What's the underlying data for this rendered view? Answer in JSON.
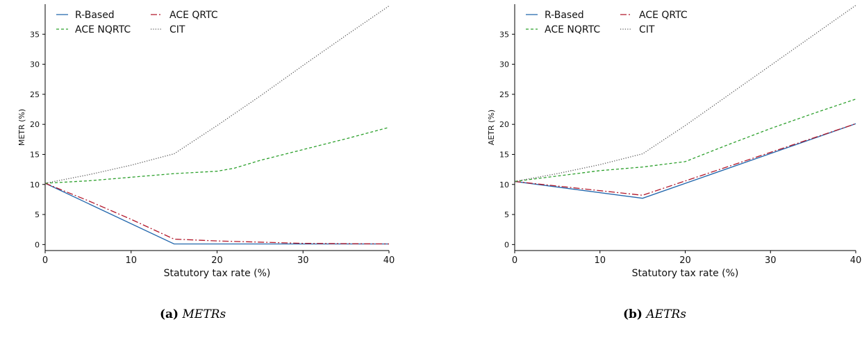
{
  "figure": {
    "captions": [
      {
        "label": "(a)",
        "text": "METRs"
      },
      {
        "label": "(b)",
        "text": "AETRs"
      }
    ]
  },
  "chart_data": [
    {
      "type": "line",
      "xlabel": "Statutory tax rate (%)",
      "ylabel": "METR (%)",
      "xlim": [
        0,
        40
      ],
      "ylim": [
        -1,
        40
      ],
      "xticks": [
        0,
        10,
        20,
        30,
        40
      ],
      "yticks": [
        0,
        5,
        10,
        15,
        20,
        25,
        30,
        35
      ],
      "grid": false,
      "legend": "top-left",
      "series": [
        {
          "name": "R-Based",
          "color": "#2166ac",
          "dash": "solid",
          "points": [
            [
              0,
              10.2
            ],
            [
              15,
              0.1
            ],
            [
              40,
              0.1
            ]
          ]
        },
        {
          "name": "ACE QRTC",
          "color": "#b2182b",
          "dash": "dashdot",
          "points": [
            [
              0,
              10.2
            ],
            [
              5,
              7.3
            ],
            [
              10,
              4.2
            ],
            [
              15,
              0.9
            ],
            [
              20,
              0.6
            ],
            [
              30,
              0.2
            ],
            [
              40,
              0.1
            ]
          ]
        },
        {
          "name": "ACE NQRTC",
          "color": "#2ca02c",
          "dash": "dashed",
          "points": [
            [
              0,
              10.2
            ],
            [
              5,
              10.6
            ],
            [
              10,
              11.2
            ],
            [
              15,
              11.8
            ],
            [
              20,
              12.2
            ],
            [
              22,
              12.7
            ],
            [
              25,
              14
            ],
            [
              30,
              15.8
            ],
            [
              35,
              17.6
            ],
            [
              40,
              19.5
            ]
          ]
        },
        {
          "name": "CIT",
          "color": "#555555",
          "dash": "dotted",
          "points": [
            [
              0,
              10.2
            ],
            [
              5,
              11.6
            ],
            [
              10,
              13.2
            ],
            [
              15,
              15.1
            ],
            [
              20,
              19.8
            ],
            [
              25,
              24.7
            ],
            [
              30,
              29.8
            ],
            [
              35,
              34.8
            ],
            [
              40,
              39.7
            ]
          ]
        }
      ]
    },
    {
      "type": "line",
      "xlabel": "Statutory tax rate (%)",
      "ylabel": "AETR (%)",
      "xlim": [
        0,
        40
      ],
      "ylim": [
        -1,
        40
      ],
      "xticks": [
        0,
        10,
        20,
        30,
        40
      ],
      "yticks": [
        0,
        5,
        10,
        15,
        20,
        25,
        30,
        35
      ],
      "grid": false,
      "legend": "top-left",
      "series": [
        {
          "name": "R-Based",
          "color": "#2166ac",
          "dash": "solid",
          "points": [
            [
              0,
              10.5
            ],
            [
              15,
              7.7
            ],
            [
              40,
              20.1
            ]
          ]
        },
        {
          "name": "ACE QRTC",
          "color": "#b2182b",
          "dash": "dashdot",
          "points": [
            [
              0,
              10.5
            ],
            [
              15,
              8.2
            ],
            [
              40,
              20.1
            ]
          ]
        },
        {
          "name": "ACE NQRTC",
          "color": "#2ca02c",
          "dash": "dashed",
          "points": [
            [
              0,
              10.5
            ],
            [
              5,
              11.4
            ],
            [
              10,
              12.3
            ],
            [
              15,
              12.9
            ],
            [
              20,
              13.8
            ],
            [
              25,
              16.6
            ],
            [
              30,
              19.3
            ],
            [
              35,
              21.8
            ],
            [
              40,
              24.2
            ]
          ]
        },
        {
          "name": "CIT",
          "color": "#555555",
          "dash": "dotted",
          "points": [
            [
              0,
              10.5
            ],
            [
              5,
              11.8
            ],
            [
              10,
              13.3
            ],
            [
              15,
              15.1
            ],
            [
              20,
              19.8
            ],
            [
              25,
              24.8
            ],
            [
              30,
              29.8
            ],
            [
              35,
              34.8
            ],
            [
              40,
              39.8
            ]
          ]
        }
      ]
    }
  ]
}
